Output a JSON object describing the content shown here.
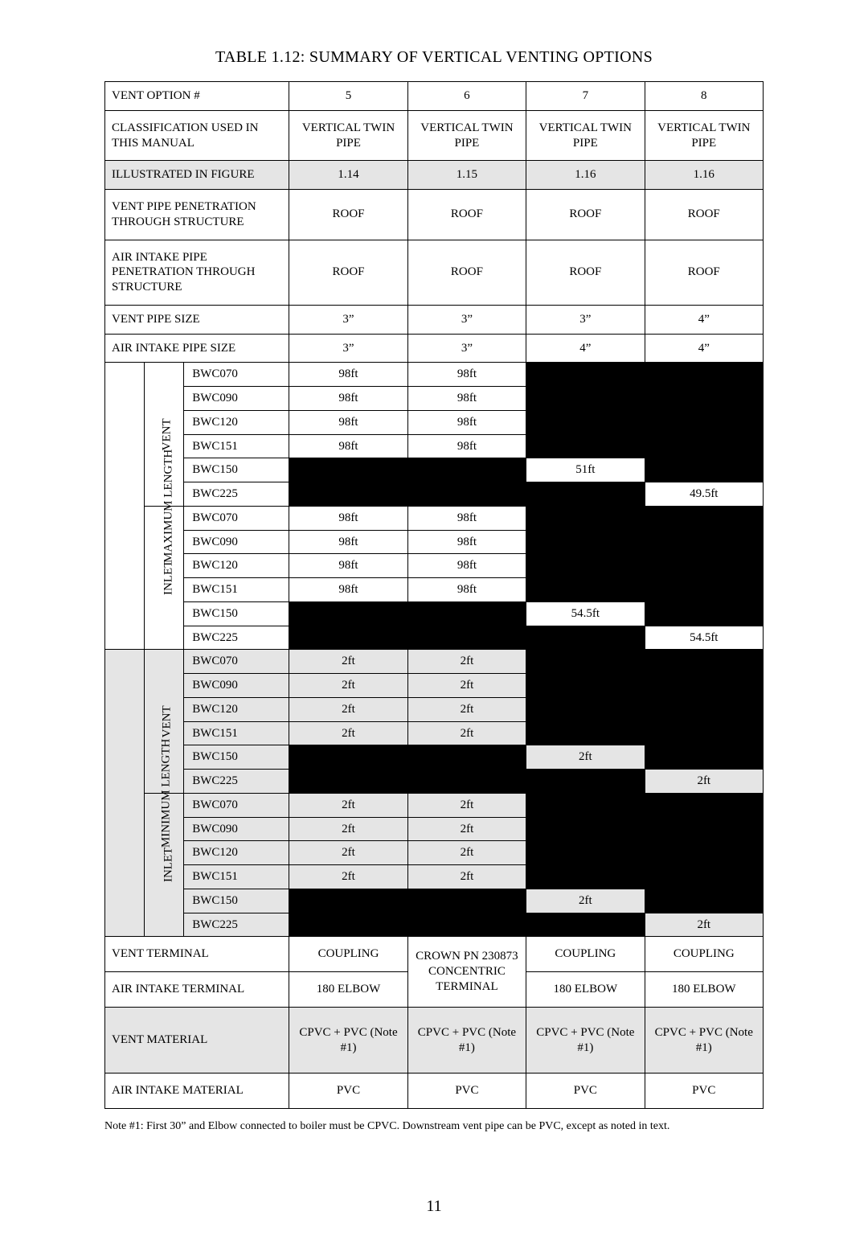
{
  "title": "TABLE 1.12: SUMMARY  OF VERTICAL VENTING OPTIONS",
  "columns": [
    "5",
    "6",
    "7",
    "8"
  ],
  "headerRows": {
    "ventOption": "VENT OPTION #",
    "classification": {
      "label": "CLASSIFICATION USED IN THIS MANUAL",
      "vals": [
        "VERTICAL TWIN PIPE",
        "VERTICAL TWIN PIPE",
        "VERTICAL TWIN PIPE",
        "VERTICAL TWIN PIPE"
      ]
    },
    "illustrated": {
      "label": "ILLUSTRATED IN FIGURE",
      "vals": [
        "1.14",
        "1.15",
        "1.16",
        "1.16"
      ],
      "shaded": true
    },
    "ventPen": {
      "label": "VENT PIPE PENETRATION THROUGH STRUCTURE",
      "vals": [
        "ROOF",
        "ROOF",
        "ROOF",
        "ROOF"
      ]
    },
    "airPen": {
      "label": "AIR INTAKE PIPE PENETRATION THROUGH STRUCTURE",
      "vals": [
        "ROOF",
        "ROOF",
        "ROOF",
        "ROOF"
      ]
    },
    "ventSize": {
      "label": "VENT PIPE SIZE",
      "vals": [
        "3”",
        "3”",
        "3”",
        "4”"
      ]
    },
    "airSize": {
      "label": "AIR INTAKE PIPE SIZE",
      "vals": [
        "3”",
        "3”",
        "4”",
        "4”"
      ]
    }
  },
  "models": [
    "BWC070",
    "BWC090",
    "BWC120",
    "BWC151",
    "BWC150",
    "BWC225"
  ],
  "maxLabel": "MAXIMUM  LENGTH",
  "minLabel": "MINIMUM  LENGTH",
  "ventLabel": "VENT",
  "inletLabel": "INLET",
  "maxVent": [
    [
      "98ft",
      "98ft",
      null,
      null
    ],
    [
      "98ft",
      "98ft",
      null,
      null
    ],
    [
      "98ft",
      "98ft",
      null,
      null
    ],
    [
      "98ft",
      "98ft",
      null,
      null
    ],
    [
      null,
      null,
      "51ft",
      null
    ],
    [
      null,
      null,
      null,
      "49.5ft"
    ]
  ],
  "maxInlet": [
    [
      "98ft",
      "98ft",
      null,
      null
    ],
    [
      "98ft",
      "98ft",
      null,
      null
    ],
    [
      "98ft",
      "98ft",
      null,
      null
    ],
    [
      "98ft",
      "98ft",
      null,
      null
    ],
    [
      null,
      null,
      "54.5ft",
      null
    ],
    [
      null,
      null,
      null,
      "54.5ft"
    ]
  ],
  "minVent": [
    [
      "2ft",
      "2ft",
      null,
      null
    ],
    [
      "2ft",
      "2ft",
      null,
      null
    ],
    [
      "2ft",
      "2ft",
      null,
      null
    ],
    [
      "2ft",
      "2ft",
      null,
      null
    ],
    [
      null,
      null,
      "2ft",
      null
    ],
    [
      null,
      null,
      null,
      "2ft"
    ]
  ],
  "minInlet": [
    [
      "2ft",
      "2ft",
      null,
      null
    ],
    [
      "2ft",
      "2ft",
      null,
      null
    ],
    [
      "2ft",
      "2ft",
      null,
      null
    ],
    [
      "2ft",
      "2ft",
      null,
      null
    ],
    [
      null,
      null,
      "2ft",
      null
    ],
    [
      null,
      null,
      null,
      "2ft"
    ]
  ],
  "ventTerminal": {
    "label": "VENT TERMINAL",
    "vals": [
      "COUPLING",
      "CROWN PN 230873 CONCENTRIC TERMINAL",
      "COUPLING",
      "COUPLING"
    ]
  },
  "airTerminal": {
    "label": "AIR INTAKE TERMINAL",
    "vals": [
      "180 ELBOW",
      "",
      "180 ELBOW",
      "180 ELBOW"
    ]
  },
  "ventMaterial": {
    "label": "VENT MATERIAL",
    "vals": [
      "CPVC + PVC (Note #1)",
      "CPVC + PVC (Note #1)",
      "CPVC + PVC (Note #1)",
      "CPVC + PVC (Note #1)"
    ]
  },
  "airMaterial": {
    "label": "AIR INTAKE MATERIAL",
    "vals": [
      "PVC",
      "PVC",
      "PVC",
      "PVC"
    ]
  },
  "note": "Note #1: First 30” and Elbow connected to boiler must be CPVC. Downstream vent pipe can be PVC, except as noted in text.",
  "pageNumber": "11",
  "colors": {
    "shaded": "#e5e5e5",
    "black": "#000000",
    "border": "#000000",
    "background": "#ffffff"
  },
  "fontsize": {
    "title": 20,
    "body": 15,
    "note": 14,
    "pagenum": 20
  }
}
